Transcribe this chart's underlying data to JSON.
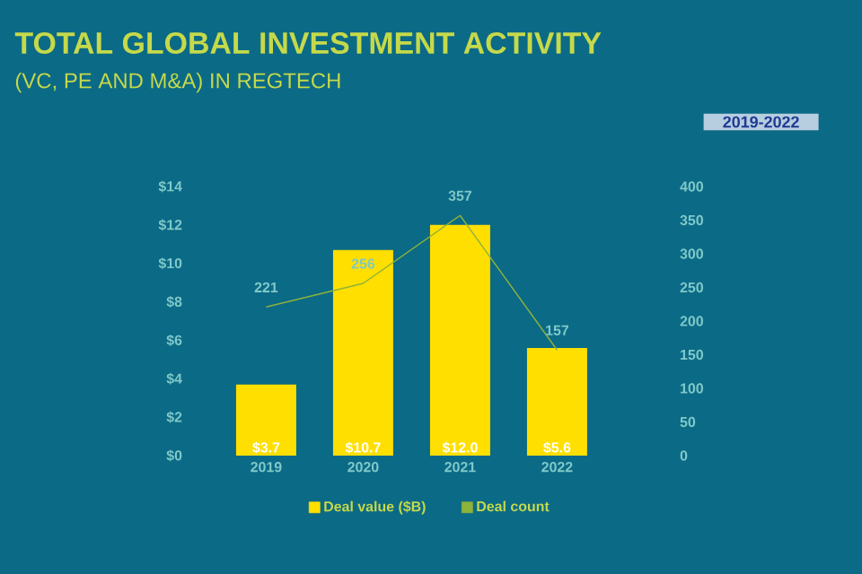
{
  "chart_data": {
    "type": "bar",
    "title": "TOTAL GLOBAL INVESTMENT ACTIVITY",
    "subtitle": "(VC, PE AND M&A) IN REGTECH",
    "categories": [
      "2019",
      "2020",
      "2021",
      "2022"
    ],
    "series": [
      {
        "name": "Deal value ($B)",
        "color": "#ffdf00",
        "values": [
          3.7,
          10.7,
          12.0,
          5.6
        ],
        "value_labels": [
          "$3.7",
          "$10.7",
          "$12.0",
          "$5.6"
        ]
      },
      {
        "name": "Deal count",
        "type": "line",
        "axis": "y2",
        "color": "#8db33a",
        "values": [
          221,
          256,
          357,
          157
        ],
        "data_labels": true
      }
    ],
    "ylim": [
      0,
      14
    ],
    "yticks": [
      {
        "value": 0,
        "label": "$0"
      },
      {
        "value": 2,
        "label": "$2"
      },
      {
        "value": 4,
        "label": "$4"
      },
      {
        "value": 6,
        "label": "$6"
      },
      {
        "value": 8,
        "label": "$8"
      },
      {
        "value": 10,
        "label": "$10"
      },
      {
        "value": 12,
        "label": "$12"
      },
      {
        "value": 14,
        "label": "$14"
      }
    ],
    "y2lim": [
      0,
      400
    ],
    "y2ticks": [
      0,
      50,
      100,
      150,
      200,
      250,
      300,
      350,
      400
    ],
    "legend": "bottom",
    "annotations": [
      "2019-2022"
    ]
  }
}
